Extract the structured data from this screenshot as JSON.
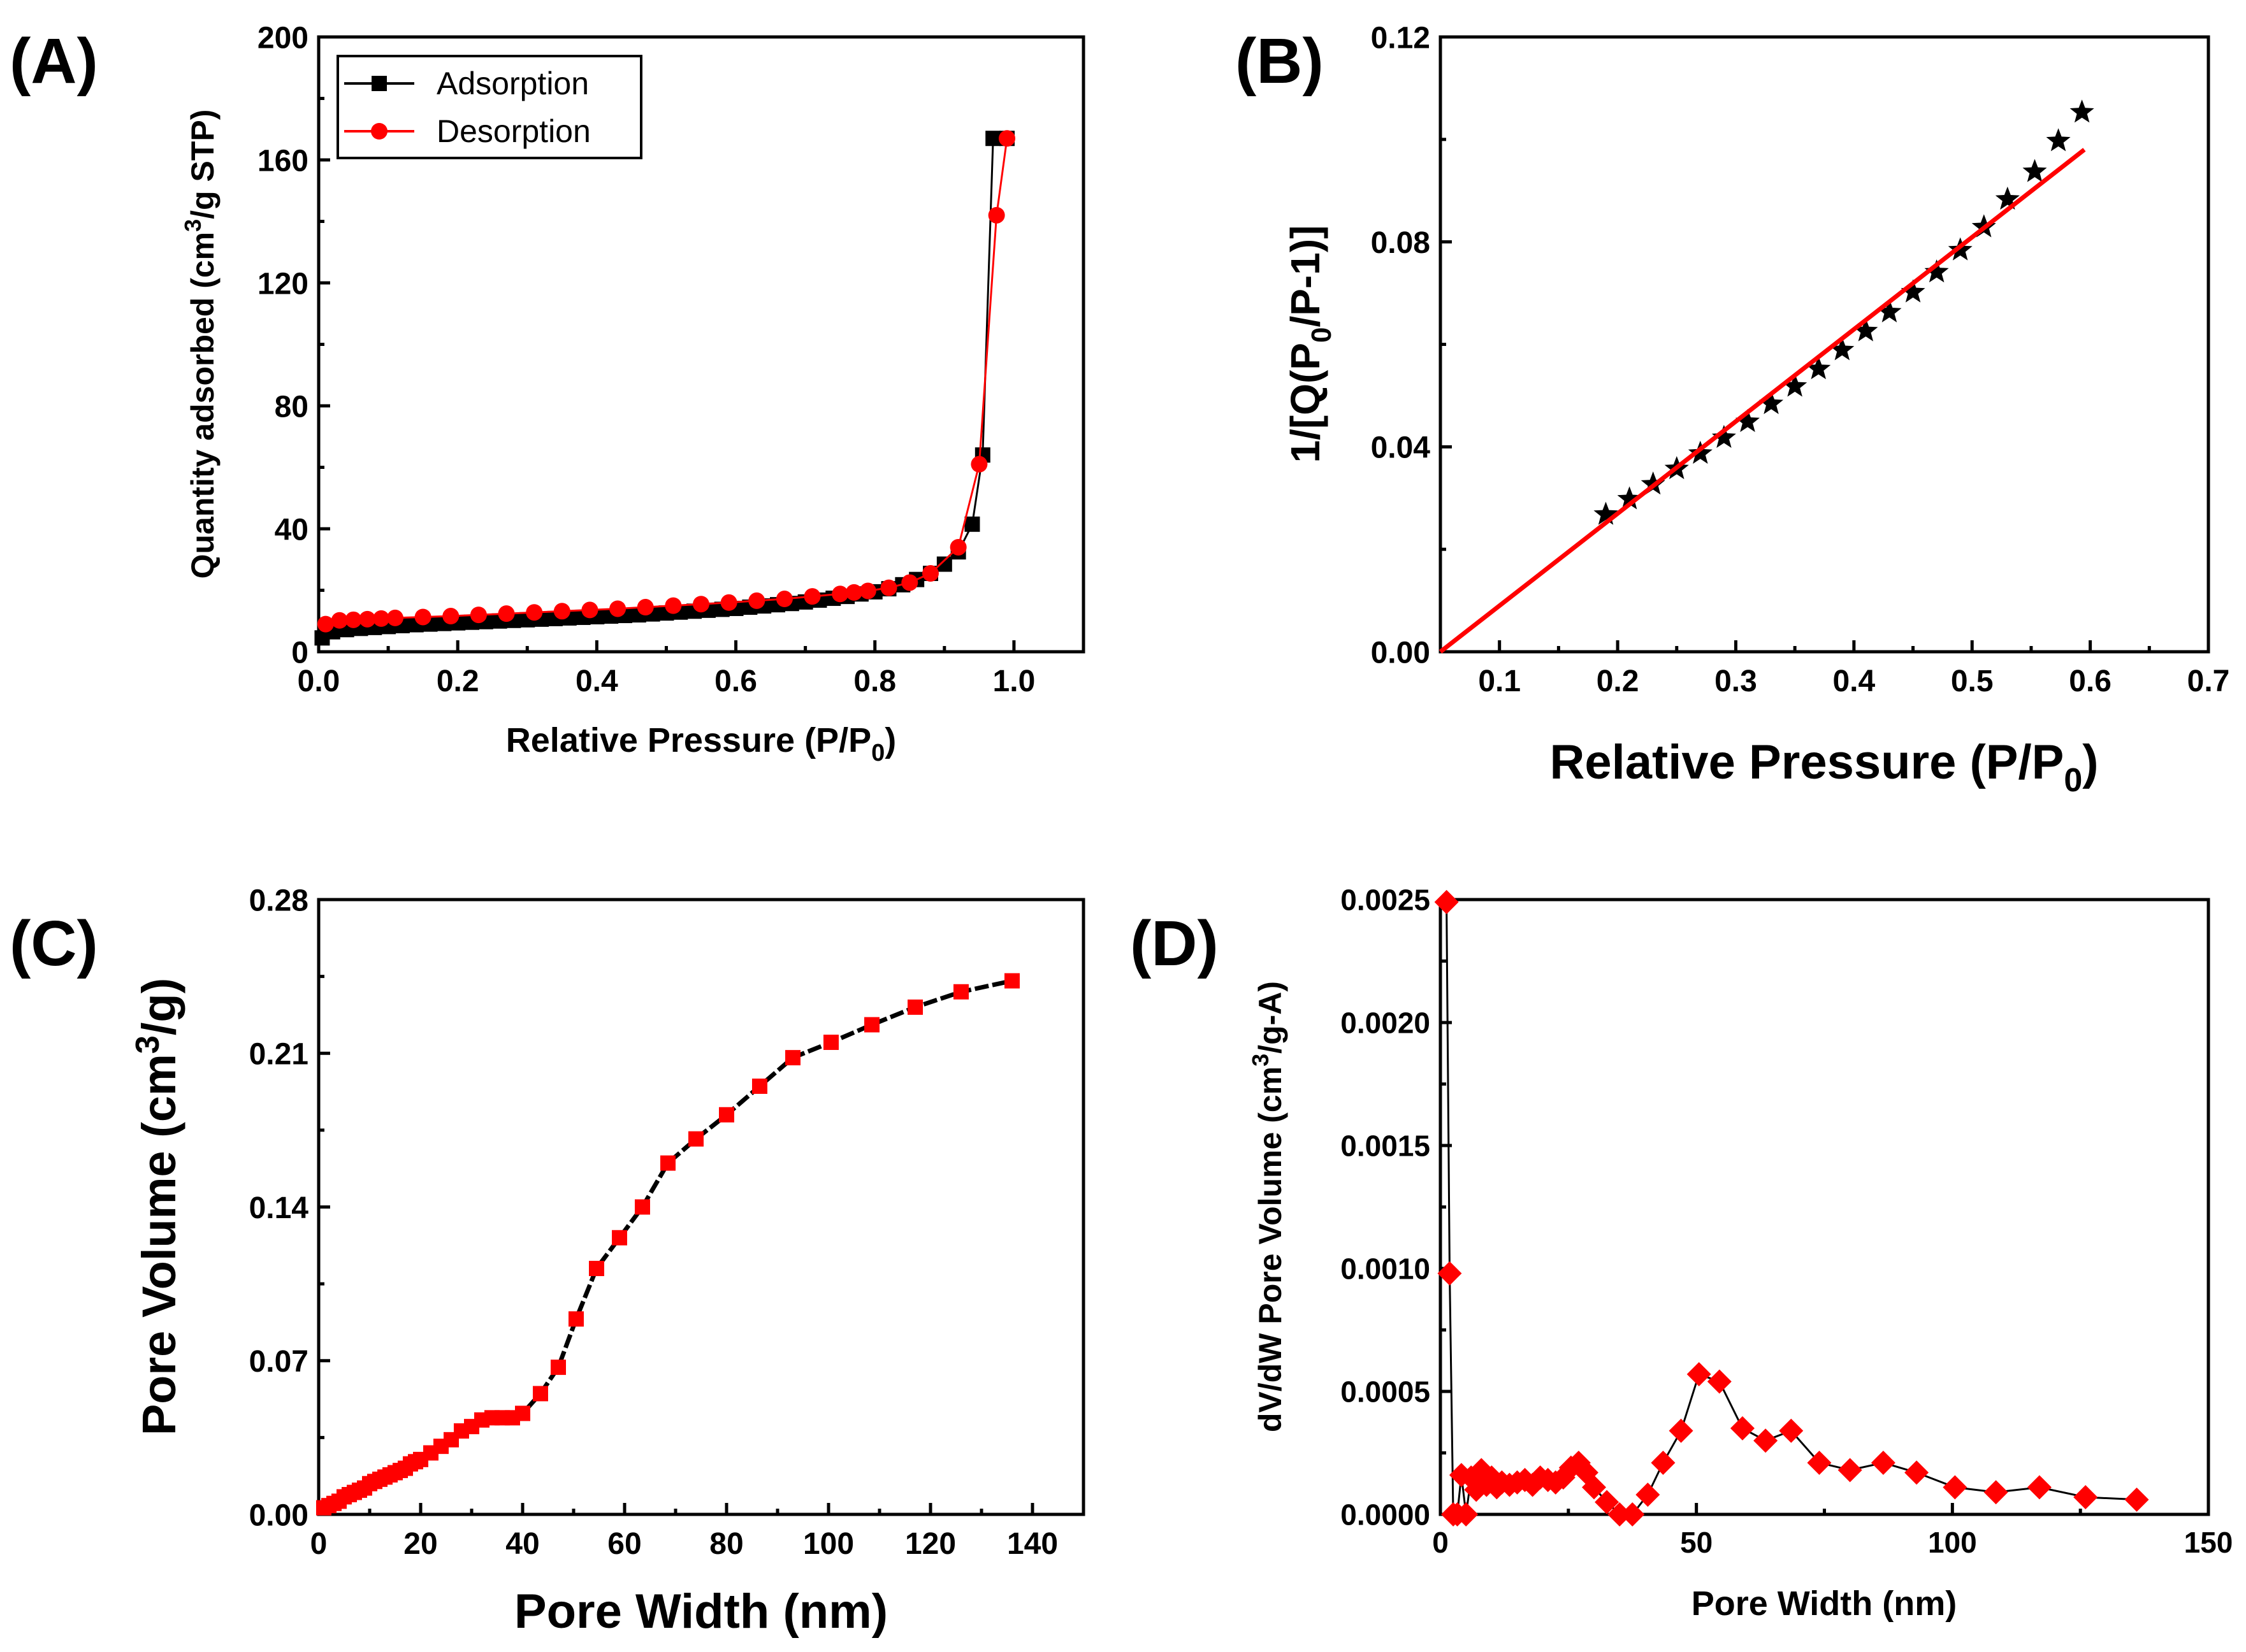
{
  "figure": {
    "panels": [
      {
        "id": "A",
        "label": "(A)"
      },
      {
        "id": "B",
        "label": "(B)"
      },
      {
        "id": "C",
        "label": "(C)"
      },
      {
        "id": "D",
        "label": "(D)"
      }
    ]
  },
  "chart_data": [
    {
      "panel": "(A)",
      "type": "line",
      "xlabel": "Relative Pressure (P/P0)",
      "ylabel": "Quantity adsorbed (cm3/g STP)",
      "xlim": [
        0.0,
        1.1
      ],
      "ylim": [
        0,
        200
      ],
      "xticks": [
        "0.0",
        "0.2",
        "0.4",
        "0.6",
        "0.8",
        "1.0"
      ],
      "yticks": [
        "0",
        "40",
        "80",
        "120",
        "160",
        "200"
      ],
      "legend": {
        "position": "top-left"
      },
      "series": [
        {
          "name": "Adsorption",
          "color": "#000000",
          "marker": "square",
          "x": [
            0.005,
            0.02,
            0.04,
            0.06,
            0.08,
            0.1,
            0.12,
            0.14,
            0.16,
            0.18,
            0.2,
            0.22,
            0.24,
            0.26,
            0.28,
            0.3,
            0.32,
            0.34,
            0.36,
            0.38,
            0.4,
            0.42,
            0.44,
            0.46,
            0.48,
            0.5,
            0.52,
            0.54,
            0.56,
            0.58,
            0.6,
            0.62,
            0.64,
            0.66,
            0.68,
            0.7,
            0.72,
            0.74,
            0.76,
            0.78,
            0.8,
            0.82,
            0.84,
            0.86,
            0.88,
            0.9,
            0.92,
            0.94,
            0.955,
            0.97,
            0.99
          ],
          "y": [
            4.5,
            6.5,
            7.2,
            7.6,
            7.9,
            8.2,
            8.5,
            8.8,
            9.0,
            9.2,
            9.4,
            9.6,
            9.8,
            10.0,
            10.2,
            10.4,
            10.6,
            10.8,
            11.0,
            11.2,
            11.4,
            11.6,
            11.8,
            12.0,
            12.3,
            12.6,
            12.9,
            13.2,
            13.5,
            13.8,
            14.1,
            14.5,
            14.9,
            15.3,
            15.7,
            16.2,
            16.8,
            17.4,
            18.0,
            18.8,
            19.5,
            20.5,
            21.8,
            23.5,
            25.5,
            28.5,
            32.5,
            41.5,
            64.0,
            167.0,
            167.0
          ]
        },
        {
          "name": "Desorption",
          "color": "#ff0000",
          "marker": "circle",
          "x": [
            0.99,
            0.975,
            0.95,
            0.92,
            0.88,
            0.85,
            0.82,
            0.79,
            0.77,
            0.75,
            0.71,
            0.67,
            0.63,
            0.59,
            0.55,
            0.51,
            0.47,
            0.43,
            0.39,
            0.35,
            0.31,
            0.27,
            0.23,
            0.19,
            0.15,
            0.11,
            0.09,
            0.07,
            0.05,
            0.03,
            0.01
          ],
          "y": [
            167.0,
            142.0,
            61.0,
            34.0,
            25.5,
            22.5,
            20.8,
            19.8,
            19.3,
            18.8,
            18.0,
            17.2,
            16.6,
            16.0,
            15.5,
            15.0,
            14.5,
            14.0,
            13.6,
            13.2,
            12.8,
            12.4,
            12.0,
            11.6,
            11.3,
            11.0,
            10.8,
            10.6,
            10.4,
            10.2,
            9.0
          ]
        }
      ]
    },
    {
      "panel": "(B)",
      "type": "scatter",
      "xlabel": "Relative Pressure (P/P0)",
      "ylabel": "1/[Q(P0/P-1)]",
      "xlim": [
        0.05,
        0.7
      ],
      "ylim": [
        0.0,
        0.12
      ],
      "xticks": [
        "0.1",
        "0.2",
        "0.3",
        "0.4",
        "0.5",
        "0.6",
        "0.7"
      ],
      "yticks": [
        "0.00",
        "0.04",
        "0.08",
        "0.12"
      ],
      "series": [
        {
          "color": "#000000",
          "marker": "star",
          "x": [
            0.19,
            0.21,
            0.23,
            0.25,
            0.27,
            0.29,
            0.31,
            0.33,
            0.35,
            0.37,
            0.39,
            0.41,
            0.43,
            0.45,
            0.47,
            0.49,
            0.51,
            0.53,
            0.553,
            0.573,
            0.593
          ],
          "y": [
            0.0268,
            0.0298,
            0.0327,
            0.0357,
            0.0387,
            0.0418,
            0.0449,
            0.0484,
            0.0518,
            0.0552,
            0.0589,
            0.0626,
            0.0663,
            0.0702,
            0.0741,
            0.0784,
            0.0829,
            0.0883,
            0.0937,
            0.0997,
            0.1053
          ]
        },
        {
          "color": "#ff0000",
          "style": "fit-line",
          "x": [
            0.05,
            0.595
          ],
          "y": [
            0.0,
            0.098
          ]
        }
      ]
    },
    {
      "panel": "(C)",
      "type": "line",
      "xlabel": "Pore Width (nm)",
      "ylabel": "Pore Volume (cm3/g)",
      "xlim": [
        0,
        150
      ],
      "ylim": [
        0.0,
        0.28
      ],
      "xticks": [
        "0",
        "20",
        "40",
        "60",
        "80",
        "100",
        "120",
        "140"
      ],
      "yticks": [
        "0.00",
        "0.07",
        "0.14",
        "0.21",
        "0.28"
      ],
      "series": [
        {
          "color": "#ff0000",
          "line_color": "#000000",
          "marker": "square",
          "x": [
            1,
            2,
            3,
            4,
            5,
            6,
            7,
            8,
            9,
            10,
            11,
            12,
            13,
            14,
            15,
            16,
            17,
            18,
            19,
            20,
            22,
            24,
            26,
            28,
            30,
            32,
            34,
            36,
            38,
            40,
            43.5,
            47,
            50.5,
            54.5,
            59,
            63.5,
            68.5,
            74,
            80,
            86.5,
            93,
            100.5,
            108.5,
            117,
            126,
            136
          ],
          "y": [
            0.003,
            0.004,
            0.005,
            0.006,
            0.008,
            0.009,
            0.01,
            0.011,
            0.012,
            0.014,
            0.015,
            0.016,
            0.017,
            0.018,
            0.019,
            0.02,
            0.021,
            0.023,
            0.024,
            0.025,
            0.028,
            0.031,
            0.034,
            0.038,
            0.04,
            0.043,
            0.044,
            0.044,
            0.044,
            0.046,
            0.055,
            0.067,
            0.089,
            0.112,
            0.126,
            0.14,
            0.16,
            0.171,
            0.182,
            0.195,
            0.208,
            0.215,
            0.223,
            0.231,
            0.238,
            0.243
          ]
        }
      ]
    },
    {
      "panel": "(D)",
      "type": "line",
      "xlabel": "Pore Width (nm)",
      "ylabel": "dV/dW Pore Volume (cm3/g-A)",
      "xlim": [
        0,
        150
      ],
      "ylim": [
        0.0,
        0.0025
      ],
      "xticks": [
        "0",
        "50",
        "100",
        "150"
      ],
      "yticks": [
        "0.0000",
        "0.0005",
        "0.0010",
        "0.0015",
        "0.0020",
        "0.0025"
      ],
      "series": [
        {
          "color": "#ff0000",
          "line_color": "#000000",
          "marker": "diamond",
          "x": [
            1.2,
            1.8,
            2.5,
            3.3,
            4.1,
            5.0,
            6.0,
            7.0,
            8.0,
            9.0,
            10.0,
            11.0,
            12.0,
            13.5,
            15.0,
            16.5,
            18.0,
            19.5,
            21.0,
            22.5,
            24.0,
            25.5,
            27.0,
            28.5,
            30.0,
            32.5,
            35.0,
            37.5,
            40.5,
            43.5,
            47.0,
            50.5,
            54.5,
            59.0,
            63.5,
            68.5,
            74.0,
            80.0,
            86.5,
            93.0,
            100.5,
            108.5,
            117.0,
            126.0,
            136.0
          ],
          "y": [
            0.00249,
            0.00098,
            0.0,
            0.0,
            0.00016,
            0.0,
            0.00015,
            0.0001,
            0.00018,
            0.00012,
            0.00015,
            0.00011,
            0.00013,
            0.00012,
            0.00013,
            0.00014,
            0.00012,
            0.00015,
            0.00014,
            0.00013,
            0.00015,
            0.00019,
            0.00021,
            0.00017,
            0.00011,
            5e-05,
            0.0,
            0.0,
            8e-05,
            0.00021,
            0.00034,
            0.00057,
            0.00054,
            0.00035,
            0.0003,
            0.00034,
            0.00021,
            0.00018,
            0.00021,
            0.00017,
            0.00011,
            9e-05,
            0.00011,
            7e-05,
            6e-05
          ]
        }
      ]
    }
  ]
}
